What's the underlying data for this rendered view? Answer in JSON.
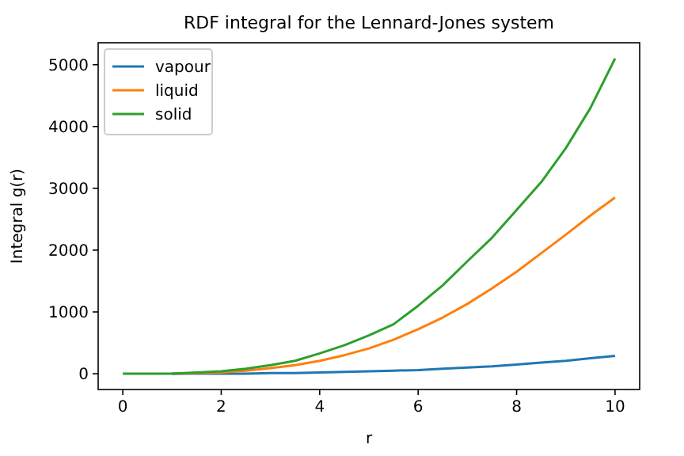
{
  "chart_data": {
    "type": "line",
    "title": "RDF integral for the Lennard-Jones system",
    "xlabel": "r",
    "ylabel": "Integral g(r)",
    "x": [
      0,
      0.5,
      1,
      1.5,
      2,
      2.5,
      3,
      3.5,
      4,
      4.5,
      5,
      5.5,
      6,
      6.5,
      7,
      7.5,
      8,
      8.5,
      9,
      9.5,
      10
    ],
    "series": [
      {
        "name": "vapour",
        "color": "#1f77b4",
        "values": [
          null,
          null,
          0,
          0,
          0,
          0,
          10,
          10,
          20,
          30,
          40,
          50,
          60,
          80,
          100,
          120,
          150,
          180,
          210,
          250,
          290
        ]
      },
      {
        "name": "liquid",
        "color": "#ff7f0e",
        "values": [
          null,
          null,
          0,
          10,
          20,
          50,
          90,
          140,
          210,
          300,
          410,
          550,
          720,
          910,
          1130,
          1380,
          1650,
          1950,
          2250,
          2560,
          2850
        ]
      },
      {
        "name": "solid",
        "color": "#2ca02c",
        "values": [
          0,
          0,
          0,
          20,
          40,
          80,
          140,
          210,
          330,
          460,
          620,
          800,
          1100,
          1430,
          1820,
          2200,
          2650,
          3100,
          3650,
          4300,
          5100
        ]
      }
    ],
    "xlim": [
      -0.5,
      10.5
    ],
    "ylim": [
      -255,
      5355
    ],
    "xticks": [
      0,
      2,
      4,
      6,
      8,
      10
    ],
    "yticks": [
      0,
      1000,
      2000,
      3000,
      4000,
      5000
    ],
    "legend": "top left"
  }
}
